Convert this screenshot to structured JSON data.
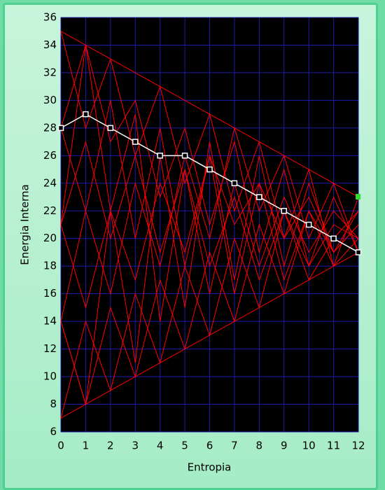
{
  "chart_data": {
    "type": "line",
    "xlabel": "Entropia",
    "ylabel": "Energia Interna",
    "x": [
      0,
      1,
      2,
      3,
      4,
      5,
      6,
      7,
      8,
      9,
      10,
      11,
      12
    ],
    "xlim": [
      0,
      12
    ],
    "ylim": [
      6,
      36
    ],
    "xticks": [
      0,
      1,
      2,
      3,
      4,
      5,
      6,
      7,
      8,
      9,
      10,
      11,
      12
    ],
    "yticks": [
      6,
      8,
      10,
      12,
      14,
      16,
      18,
      20,
      22,
      24,
      26,
      28,
      30,
      32,
      34,
      36
    ],
    "grid": true,
    "grid_color": "#1c1ca8",
    "background": "#000000",
    "series": [
      {
        "color": "#ff0000",
        "values": [
          35,
          34,
          33,
          32,
          31,
          30,
          29,
          28,
          27,
          26,
          25,
          24,
          23
        ]
      },
      {
        "color": "#ff0000",
        "values": [
          7,
          8,
          9,
          10,
          11,
          12,
          13,
          14,
          15,
          16,
          17,
          18,
          19
        ]
      },
      {
        "color": "#ff0000",
        "values": [
          14,
          8,
          15,
          10,
          17,
          12,
          19,
          14,
          21,
          16,
          22,
          18,
          20
        ]
      },
      {
        "color": "#ff0000",
        "values": [
          21,
          15,
          22,
          17,
          24,
          19,
          26,
          21,
          24,
          20,
          23,
          19,
          21
        ]
      },
      {
        "color": "#ff0000",
        "values": [
          14,
          22,
          16,
          24,
          18,
          26,
          20,
          28,
          22,
          26,
          20,
          24,
          19
        ]
      },
      {
        "color": "#ff0000",
        "values": [
          21,
          27,
          20,
          26,
          19,
          25,
          18,
          23,
          17,
          22,
          18,
          21,
          20
        ]
      },
      {
        "color": "#ff0000",
        "values": [
          7,
          14,
          9,
          16,
          11,
          18,
          13,
          20,
          15,
          22,
          17,
          20,
          22
        ]
      },
      {
        "color": "#ff0000",
        "values": [
          35,
          28,
          33,
          26,
          31,
          24,
          29,
          22,
          27,
          20,
          25,
          18,
          23
        ]
      },
      {
        "color": "#ff0000",
        "values": [
          28,
          22,
          30,
          20,
          28,
          18,
          26,
          16,
          24,
          17,
          22,
          19,
          21
        ]
      },
      {
        "color": "#ff0000",
        "values": [
          21,
          34,
          27,
          30,
          23,
          28,
          21,
          27,
          19,
          25,
          18,
          23,
          19
        ]
      },
      {
        "color": "#ff0000",
        "values": [
          28,
          34,
          22,
          29,
          14,
          25,
          16,
          24,
          18,
          23,
          19,
          22,
          20
        ]
      },
      {
        "color": "#ff0000",
        "values": [
          14,
          8,
          22,
          11,
          26,
          15,
          27,
          17,
          26,
          18,
          24,
          19,
          22
        ]
      },
      {
        "color": "#ffffff",
        "marker": "square",
        "values": [
          28,
          29,
          28,
          27,
          26,
          26,
          25,
          24,
          23,
          22,
          21,
          20,
          19
        ]
      }
    ]
  }
}
